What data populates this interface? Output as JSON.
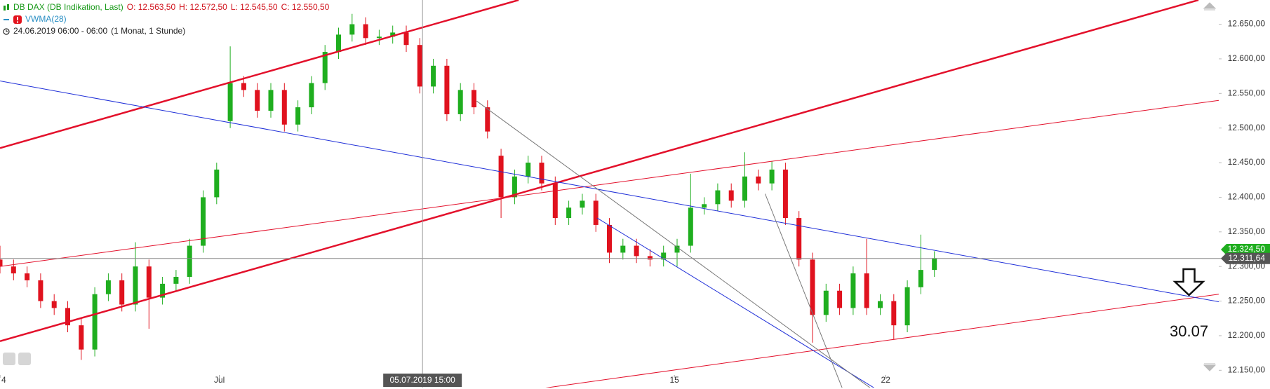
{
  "chart_data": {
    "type": "candlestick",
    "title": "DB DAX (DB Indikation, Last)",
    "ohlc_labels": [
      "O: 12.563,50",
      "H: 12.572,50",
      "L: 12.545,50",
      "C: 12.550,50"
    ],
    "indicator": "VWMA(28)",
    "period": "24.06.2019 06:00 - 06:00",
    "resolution": "(1 Monat, 1 Stunde)",
    "x": [
      0,
      1,
      2,
      3,
      4,
      5,
      6,
      7,
      8,
      9,
      10,
      11,
      12,
      13,
      14,
      15,
      16,
      17,
      18,
      19,
      20,
      21,
      22,
      23,
      24,
      25,
      26,
      27,
      28,
      29,
      30,
      31,
      32,
      33,
      34,
      35,
      36,
      37,
      38,
      39,
      40,
      41,
      42,
      43,
      44,
      45,
      46,
      47,
      48,
      49,
      50,
      51,
      52,
      53,
      54,
      55,
      56,
      57,
      58,
      59,
      60,
      61,
      62,
      63,
      64,
      65,
      66,
      67,
      68,
      69
    ],
    "open": [
      12310,
      12300,
      12290,
      12280,
      12250,
      12240,
      12215,
      12180,
      12260,
      12280,
      12245,
      12300,
      12255,
      12275,
      12285,
      12330,
      12400,
      12510,
      12565,
      12555,
      12525,
      12555,
      12505,
      12530,
      12565,
      12610,
      12635,
      12650,
      12630,
      12632,
      12638,
      12620,
      12560,
      12590,
      12520,
      12555,
      12530,
      12460,
      12400,
      12430,
      12450,
      12420,
      12370,
      12385,
      12395,
      12360,
      12320,
      12330,
      12315,
      12310,
      12320,
      12330,
      12385,
      12390,
      12410,
      12395,
      12430,
      12420,
      12440,
      12370,
      12310,
      12230,
      12265,
      12240,
      12290,
      12240,
      12250,
      12215,
      12270,
      12295
    ],
    "high": [
      12330,
      12310,
      12300,
      12290,
      12260,
      12250,
      12225,
      12270,
      12290,
      12290,
      12335,
      12310,
      12285,
      12295,
      12340,
      12410,
      12450,
      12618,
      12575,
      12565,
      12565,
      12565,
      12540,
      12575,
      12620,
      12645,
      12665,
      12660,
      12642,
      12648,
      12648,
      12630,
      12600,
      12600,
      12565,
      12565,
      12540,
      12470,
      12440,
      12460,
      12460,
      12430,
      12395,
      12405,
      12405,
      12370,
      12340,
      12340,
      12325,
      12330,
      12340,
      12434,
      12400,
      12420,
      12420,
      12465,
      12440,
      12452,
      12450,
      12380,
      12320,
      12275,
      12275,
      12300,
      12340,
      12260,
      12260,
      12280,
      12346,
      12322
    ],
    "low": [
      12290,
      12280,
      12270,
      12240,
      12230,
      12205,
      12165,
      12170,
      12250,
      12235,
      12235,
      12210,
      12245,
      12265,
      12275,
      12320,
      12390,
      12500,
      12545,
      12515,
      12515,
      12495,
      12495,
      12520,
      12555,
      12600,
      12625,
      12620,
      12620,
      12622,
      12610,
      12550,
      12550,
      12510,
      12510,
      12520,
      12485,
      12370,
      12390,
      12420,
      12410,
      12360,
      12360,
      12375,
      12350,
      12305,
      12310,
      12305,
      12300,
      12300,
      12300,
      12320,
      12375,
      12380,
      12385,
      12385,
      12410,
      12410,
      12360,
      12300,
      12190,
      12220,
      12230,
      12230,
      12230,
      12230,
      12195,
      12205,
      12260,
      12285
    ],
    "close": [
      12300,
      12290,
      12280,
      12250,
      12240,
      12215,
      12180,
      12260,
      12280,
      12245,
      12300,
      12255,
      12275,
      12285,
      12330,
      12400,
      12440,
      12565,
      12555,
      12525,
      12555,
      12505,
      12530,
      12565,
      12610,
      12635,
      12650,
      12630,
      12632,
      12638,
      12620,
      12560,
      12590,
      12520,
      12555,
      12530,
      12495,
      12400,
      12430,
      12450,
      12420,
      12370,
      12385,
      12395,
      12360,
      12320,
      12330,
      12315,
      12310,
      12320,
      12330,
      12385,
      12390,
      12410,
      12395,
      12430,
      12420,
      12440,
      12370,
      12310,
      12230,
      12265,
      12240,
      12290,
      12240,
      12250,
      12215,
      12270,
      12295,
      12312
    ],
    "up_color": "#1fae1f",
    "down_color": "#e0121e",
    "xlim": [
      0,
      90
    ],
    "xticks": [
      {
        "value": 0,
        "label": "4"
      },
      {
        "value": 16.2,
        "label": "Jul"
      },
      {
        "value": 49.8,
        "label": "15"
      },
      {
        "value": 65.4,
        "label": "22"
      }
    ],
    "ylim": [
      12125,
      12685
    ],
    "yticks": [
      {
        "value": 12150,
        "label": "12.150,00"
      },
      {
        "value": 12200,
        "label": "12.200,00"
      },
      {
        "value": 12250,
        "label": "12.250,00"
      },
      {
        "value": 12300,
        "label": "12.300,00"
      },
      {
        "value": 12350,
        "label": "12.350,00"
      },
      {
        "value": 12400,
        "label": "12.400,00"
      },
      {
        "value": 12450,
        "label": "12.450,00"
      },
      {
        "value": 12500,
        "label": "12.500,00"
      },
      {
        "value": 12550,
        "label": "12.550,00"
      },
      {
        "value": 12600,
        "label": "12.600,00"
      },
      {
        "value": 12650,
        "label": "12.650,00"
      }
    ],
    "lines": [
      {
        "x": [
          0,
          38.3
        ],
        "y": [
          12471,
          12685
        ],
        "color": "#e3102b",
        "width": 2.5
      },
      {
        "x": [
          0,
          88.5
        ],
        "y": [
          12192,
          12685
        ],
        "color": "#e3102b",
        "width": 2.5
      },
      {
        "x": [
          0,
          90
        ],
        "y": [
          12300,
          12540
        ],
        "color": "#e3102b",
        "width": 1
      },
      {
        "x": [
          40.1,
          90
        ],
        "y": [
          12124,
          12260
        ],
        "color": "#e3102b",
        "width": 1
      },
      {
        "x": [
          0,
          90
        ],
        "y": [
          12568,
          12249
        ],
        "color": "#1f2fd8",
        "width": 1
      },
      {
        "x": [
          44.1,
          64.6
        ],
        "y": [
          12370,
          12124
        ],
        "color": "#1f2fd8",
        "width": 1
      },
      {
        "x": [
          35.2,
          64.3
        ],
        "y": [
          12539,
          12124
        ],
        "color": "#777777",
        "width": 1
      },
      {
        "x": [
          56.5,
          62.2
        ],
        "y": [
          12405,
          12124
        ],
        "color": "#777777",
        "width": 1
      }
    ],
    "hline": {
      "value": 12311.64,
      "label": "12.311,64"
    },
    "last_price": {
      "value": 12324.5,
      "label": "12.324,50"
    },
    "crosshair": {
      "value": 31.2,
      "label": "05.07.2019 15:00"
    },
    "annotation": {
      "x": 87.8,
      "y": 12205,
      "text": "30.07"
    }
  }
}
